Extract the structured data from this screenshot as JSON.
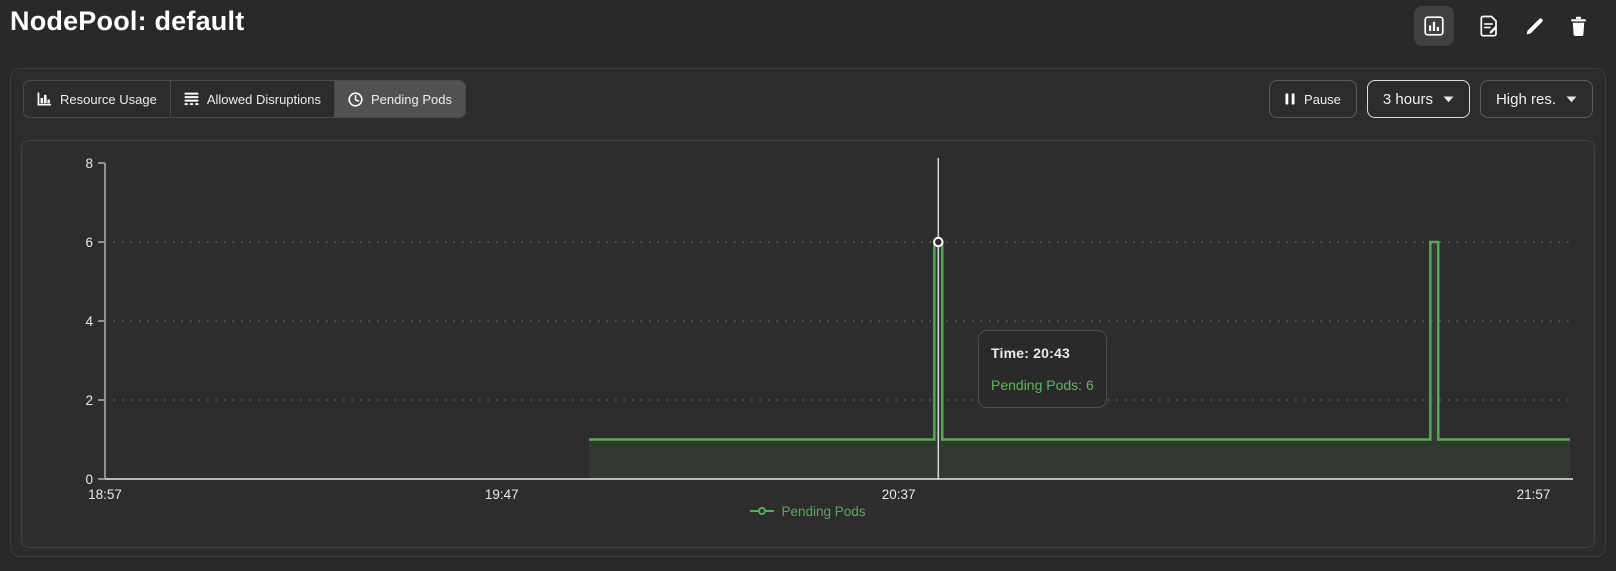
{
  "header": {
    "title": "NodePool: default",
    "actions": [
      {
        "icon": "bar-chart-icon",
        "action": "chart-view",
        "active": true
      },
      {
        "icon": "document-edit-icon",
        "action": "edit-yaml",
        "active": false
      },
      {
        "icon": "pencil-icon",
        "action": "edit",
        "active": false
      },
      {
        "icon": "trash-icon",
        "action": "delete",
        "active": false
      }
    ]
  },
  "toolbar": {
    "tabs": [
      {
        "label": "Resource Usage",
        "icon": "bar-chart-icon",
        "active": false
      },
      {
        "label": "Allowed Disruptions",
        "icon": "stack-icon",
        "active": false
      },
      {
        "label": "Pending Pods",
        "icon": "clock-icon",
        "active": true
      }
    ],
    "pause": {
      "label": "Pause",
      "icon": "pause-icon"
    },
    "range": {
      "value": "3 hours",
      "icon": "chevron-down-icon"
    },
    "resolution": {
      "value": "High res.",
      "icon": "chevron-down-icon"
    }
  },
  "chart_data": {
    "type": "line",
    "step": true,
    "x_unit": "minutes since 18:57",
    "xlim": [
      0,
      184.6
    ],
    "ylim": [
      0,
      8
    ],
    "x_ticks": [
      {
        "t": 0,
        "label": "18:57"
      },
      {
        "t": 50,
        "label": "19:47"
      },
      {
        "t": 100,
        "label": "20:37"
      },
      {
        "t": 180,
        "label": "21:57"
      }
    ],
    "y_ticks": [
      0,
      2,
      4,
      6,
      8
    ],
    "gridlines_y": [
      2,
      4,
      6
    ],
    "series": [
      {
        "name": "Pending Pods",
        "color": "#57ab57",
        "points": [
          [
            61,
            1
          ],
          [
            104.5,
            1
          ],
          [
            104.5,
            6
          ],
          [
            105.5,
            6
          ],
          [
            105.5,
            1
          ],
          [
            167,
            1
          ],
          [
            167,
            6
          ],
          [
            168,
            6
          ],
          [
            168,
            1
          ],
          [
            184.6,
            1
          ]
        ]
      }
    ],
    "highlight": {
      "t": 105,
      "value": 6,
      "time": "20:43",
      "series": "Pending Pods"
    },
    "legend_position": "bottom"
  },
  "tooltip": {
    "time_label": "Time: 20:43",
    "value_label": "Pending Pods: 6"
  },
  "colors": {
    "accent_green": "#57ab57",
    "legend_green": "#56ab56",
    "tooltip_value_green": "#5cb85c",
    "series_fill": "rgba(87,171,87,0.10)",
    "grid": "#6b6b6b",
    "x_axis": "#b8b8b8",
    "y_axis": "#909090",
    "tick_label": "#e9e9e9",
    "crosshair": "#d6d6d6"
  }
}
